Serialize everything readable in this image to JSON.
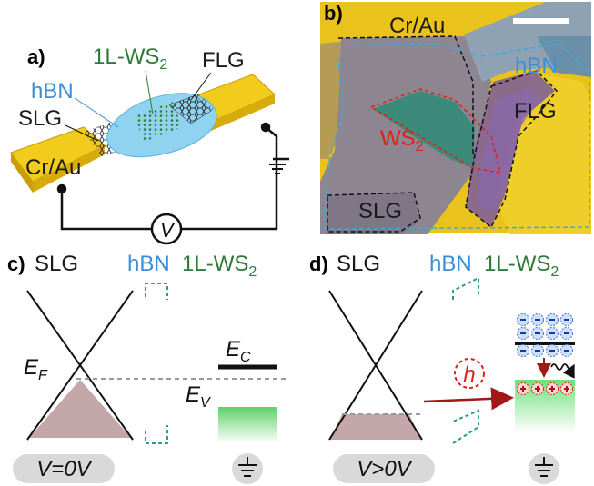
{
  "panel_a": {
    "tag": "a)",
    "label_1l_ws2": "1L-WS",
    "sub_2": "2",
    "label_flg": "FLG",
    "label_hbn": "hBN",
    "label_slg": "SLG",
    "label_crau": "Cr/Au",
    "voltmeter": "V"
  },
  "panel_b": {
    "tag": "b)",
    "label_crau": "Cr/Au",
    "label_hbn": "hBN",
    "label_flg": "FLG",
    "label_ws2": "WS",
    "sub_2": "2",
    "label_slg": "SLG"
  },
  "panel_c": {
    "tag": "c)",
    "label_slg": "SLG",
    "label_hbn": "hBN",
    "label_1l_ws2": "1L-WS",
    "sub_2": "2",
    "ef": "E",
    "ef_sub": "F",
    "ec": "E",
    "ec_sub": "C",
    "ev": "E",
    "ev_sub": "V",
    "bias": "V=0V"
  },
  "panel_d": {
    "tag": "d)",
    "label_slg": "SLG",
    "label_hbn": "hBN",
    "label_1l_ws2": "1L-WS",
    "sub_2": "2",
    "hole": "h",
    "bias": "V>0V"
  },
  "colors": {
    "gold": "#f2cc1c",
    "hbn_blue": "#8fd3f0",
    "label_blue": "#3a8fd6",
    "ws2_green": "#2f7a3a",
    "ws2_red": "#e0201a",
    "teal_dash": "#2a9d8f",
    "fermi_fill": "#c4a7a9",
    "substrate": "#8d8590",
    "ground_oval": "#d9d9d9"
  },
  "icons": [
    "ground-icon",
    "voltmeter-icon",
    "hole-icon",
    "electron-icon",
    "photon-wave-icon"
  ]
}
